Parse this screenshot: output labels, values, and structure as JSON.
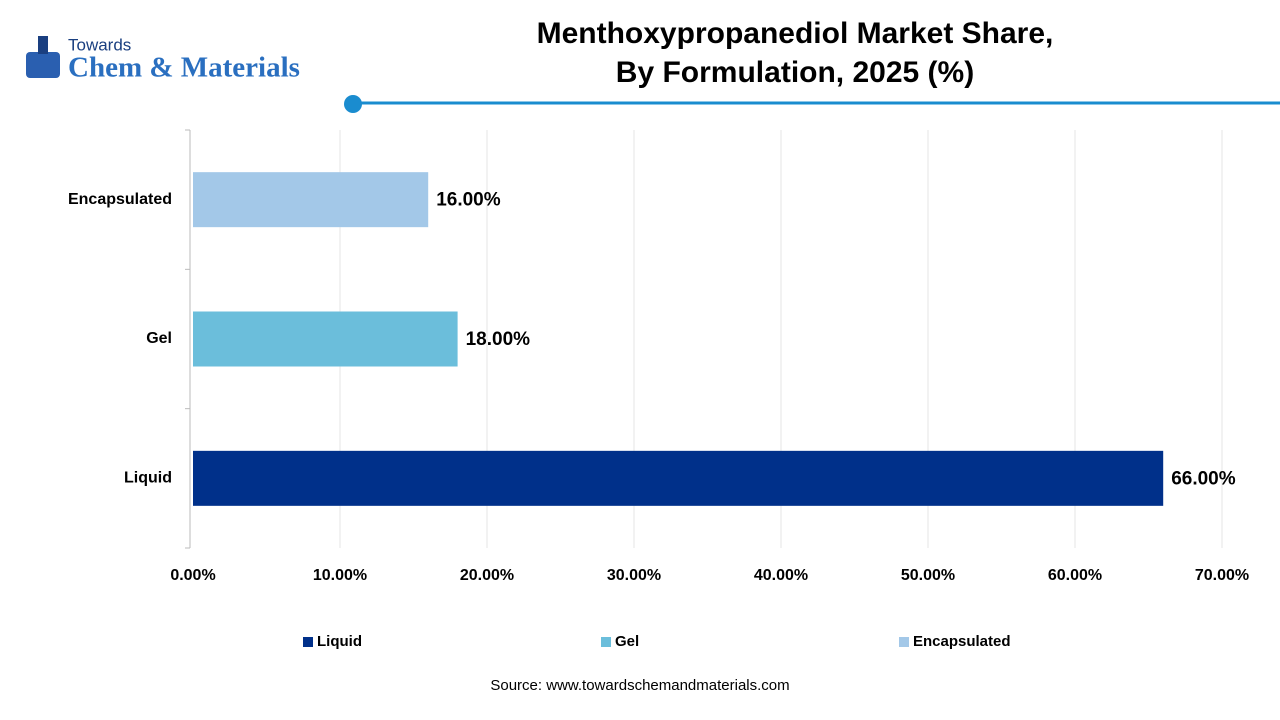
{
  "logo": {
    "line1": "Towards",
    "line2": "Chem & Materials"
  },
  "source": "Source: www.towardschemandmaterials.com",
  "chart_data": {
    "type": "hbar",
    "title": [
      "Menthoxypropanediol Market Share,",
      "By Formulation, 2025 (%)"
    ],
    "categories": [
      "Liquid",
      "Gel",
      "Encapsulated"
    ],
    "values": [
      66,
      18,
      16
    ],
    "value_labels": [
      "66.00%",
      "18.00%",
      "16.00%"
    ],
    "colors": [
      "#00308a",
      "#6bbedb",
      "#a3c8e8"
    ],
    "xlim": [
      0,
      70
    ],
    "xticks": [
      {
        "value": 0,
        "label": "0.00%"
      },
      {
        "value": 10,
        "label": "10.00%"
      },
      {
        "value": 20,
        "label": "20.00%"
      },
      {
        "value": 30,
        "label": "30.00%"
      },
      {
        "value": 40,
        "label": "40.00%"
      },
      {
        "value": 50,
        "label": "50.00%"
      },
      {
        "value": 60,
        "label": "60.00%"
      },
      {
        "value": 70,
        "label": "70.00%"
      }
    ],
    "grid": true
  }
}
